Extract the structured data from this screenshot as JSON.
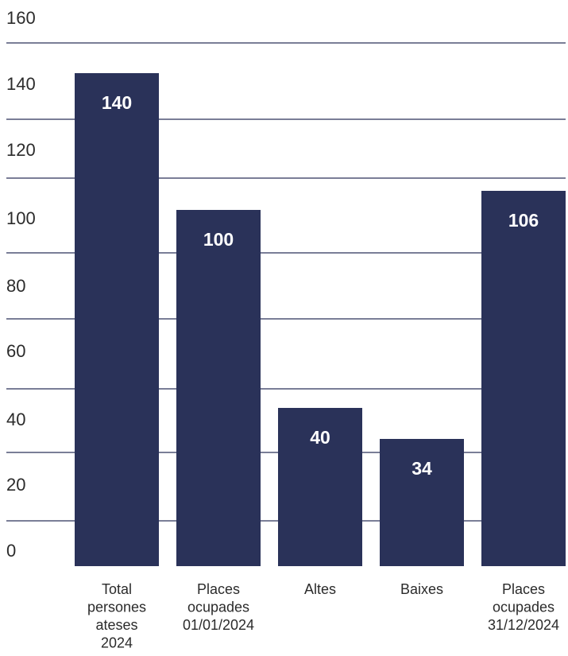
{
  "chart_data": {
    "type": "bar",
    "categories": [
      [
        "Total",
        "persones",
        "ateses",
        "2024"
      ],
      [
        "Places",
        "ocupades",
        "01/01/2024"
      ],
      [
        "Altes"
      ],
      [
        "Baixes"
      ],
      [
        "Places",
        "ocupades",
        "31/12/2024"
      ]
    ],
    "values": [
      140,
      100,
      40,
      34,
      106
    ],
    "value_labels": [
      "140",
      "100",
      "40",
      "34",
      "106"
    ],
    "ylim": [
      0,
      160
    ],
    "y_ticks": [
      "0",
      "20",
      "40",
      "60",
      "80",
      "100",
      "120",
      "140",
      "160"
    ],
    "grid": true,
    "title": "",
    "xlabel": "",
    "ylabel": "",
    "colors": {
      "bar": "#2a3259",
      "grid": "#2a3259",
      "text": "#2b2b2b",
      "value_label": "#ffffff"
    }
  }
}
